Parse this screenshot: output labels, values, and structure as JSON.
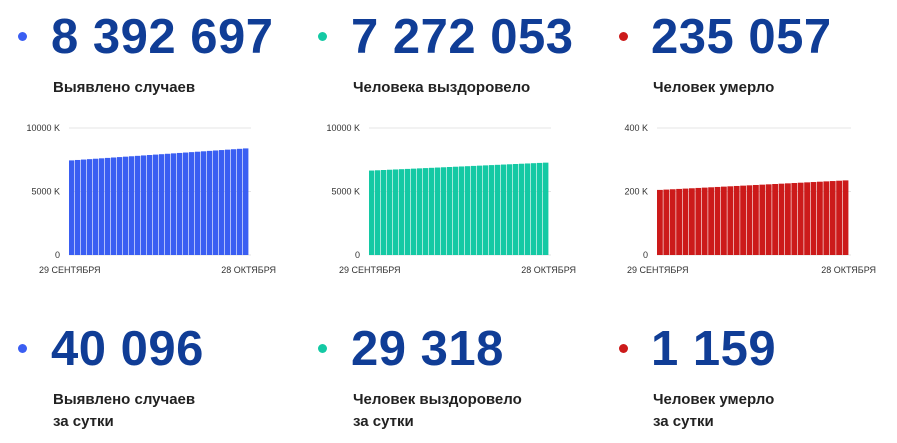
{
  "colors": {
    "blue": "#3a5ef2",
    "teal": "#14c9a4",
    "red": "#cc1a1a",
    "number": "#103d96"
  },
  "totals": [
    {
      "value": "8 392 697",
      "label": "Выявлено случаев",
      "color": "blue"
    },
    {
      "value": "7 272 053",
      "label": "Человека выздоровело",
      "color": "teal"
    },
    {
      "value": "235 057",
      "label": "Человек умерло",
      "color": "red"
    }
  ],
  "daily": [
    {
      "value": "40 096",
      "label_line1": "Выявлено случаев",
      "label_line2": "за сутки",
      "color": "blue"
    },
    {
      "value": "29 318",
      "label_line1": "Человек выздоровело",
      "label_line2": "за сутки",
      "color": "teal"
    },
    {
      "value": "1 159",
      "label_line1": "Человек умерло",
      "label_line2": "за сутки",
      "color": "red"
    }
  ],
  "chart_data": [
    {
      "type": "bar",
      "color": "blue",
      "x_start_label": "29 СЕНТЯБРЯ",
      "x_end_label": "28 ОКТЯБРЯ",
      "y_ticks": [
        0,
        5000,
        10000
      ],
      "y_tick_labels": [
        "0",
        "5000 K",
        "10000 K"
      ],
      "ylim": [
        0,
        10000
      ],
      "bar_count": 30,
      "start_value": 7450,
      "end_value": 8393,
      "grid": true
    },
    {
      "type": "bar",
      "color": "teal",
      "x_start_label": "29 СЕНТЯБРЯ",
      "x_end_label": "28 ОКТЯБРЯ",
      "y_ticks": [
        0,
        5000,
        10000
      ],
      "y_tick_labels": [
        "0",
        "5000 K",
        "10000 K"
      ],
      "ylim": [
        0,
        10000
      ],
      "bar_count": 30,
      "start_value": 6650,
      "end_value": 7272,
      "grid": true
    },
    {
      "type": "bar",
      "color": "red",
      "x_start_label": "29 СЕНТЯБРЯ",
      "x_end_label": "28 ОКТЯБРЯ",
      "y_ticks": [
        0,
        200,
        400
      ],
      "y_tick_labels": [
        "0",
        "200 K",
        "400 K"
      ],
      "ylim": [
        0,
        400
      ],
      "bar_count": 30,
      "start_value": 205,
      "end_value": 235,
      "grid": true
    }
  ]
}
